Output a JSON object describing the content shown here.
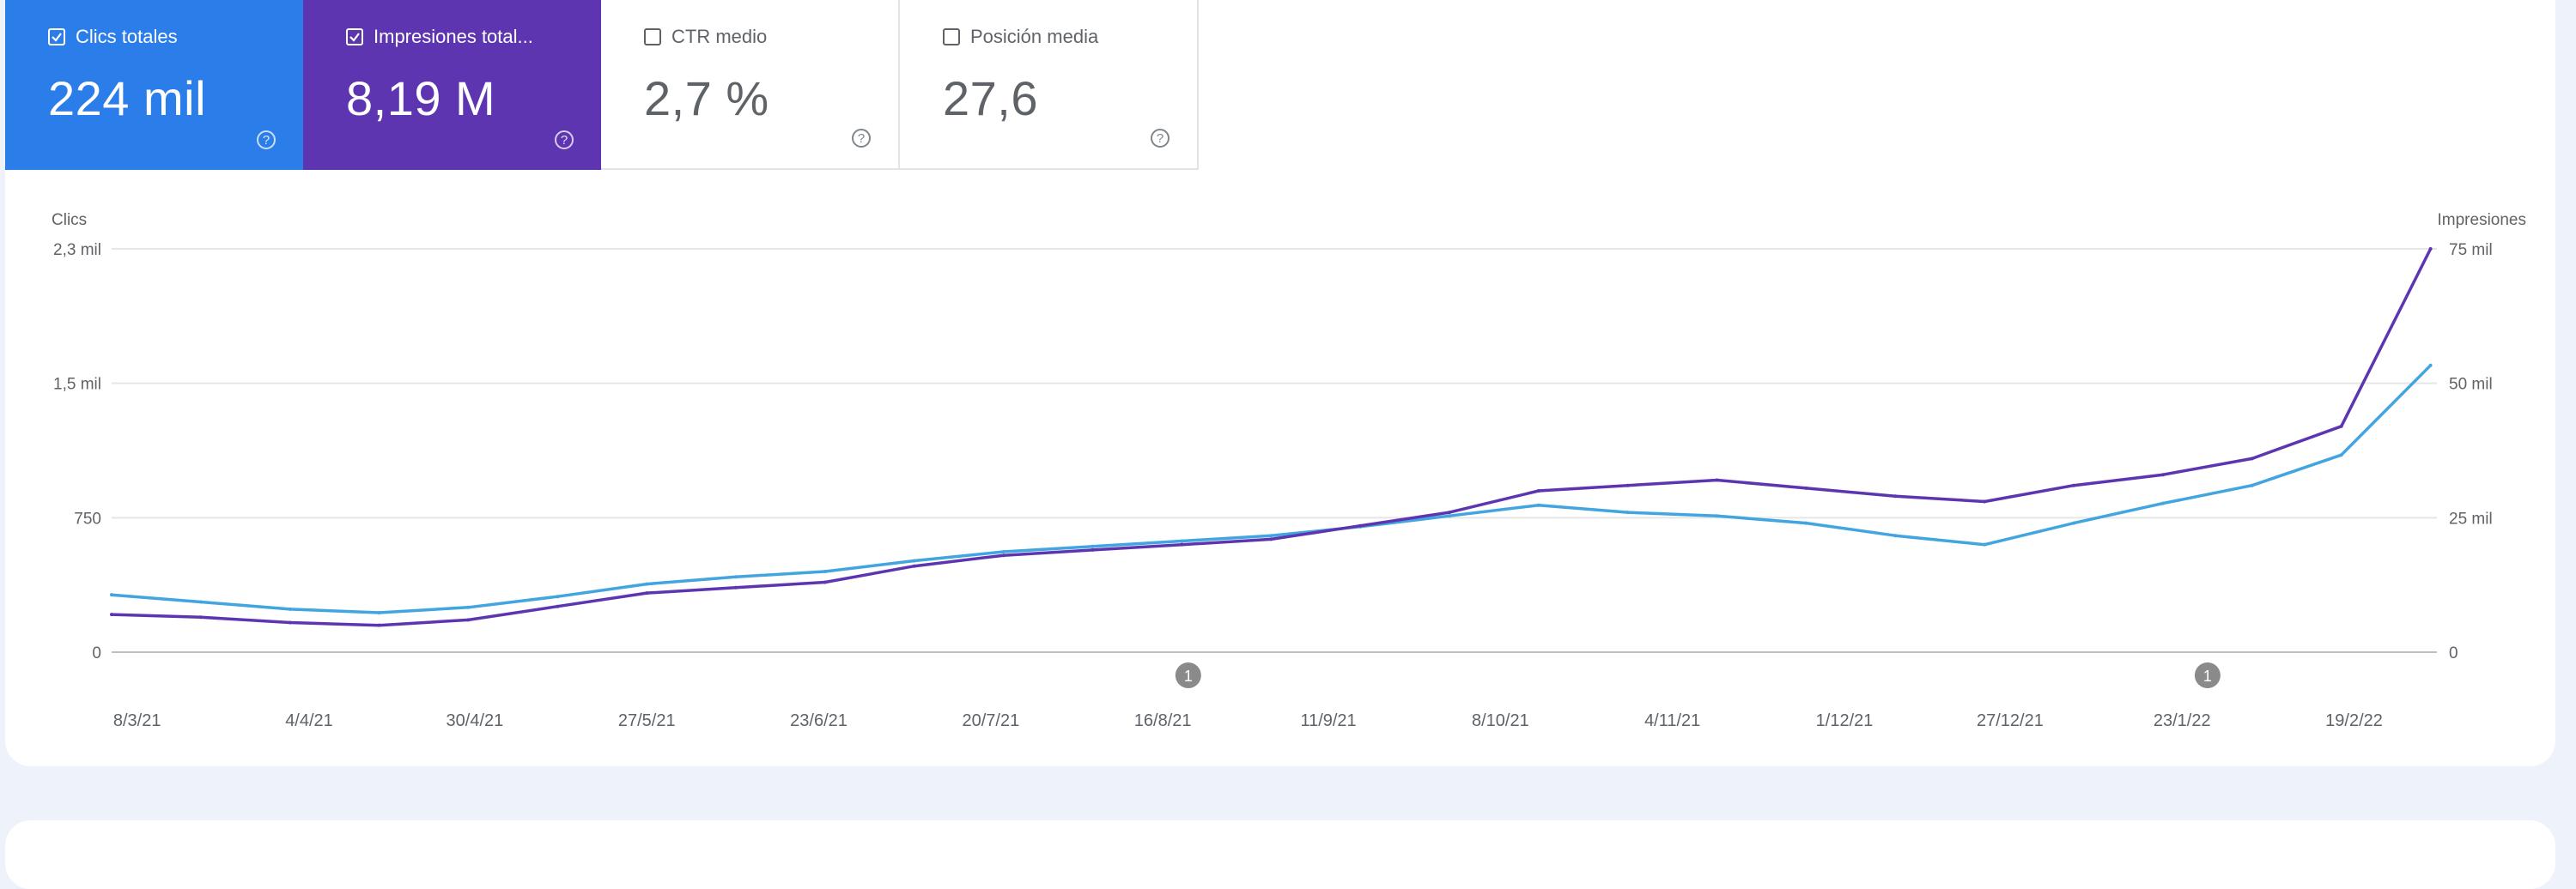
{
  "metrics": [
    {
      "label": "Clics totales",
      "value": "224 mil",
      "checked": true,
      "color": "#2b7de9"
    },
    {
      "label": "Impresiones total...",
      "value": "8,19 M",
      "checked": true,
      "color": "#5e35b1"
    },
    {
      "label": "CTR medio",
      "value": "2,7 %",
      "checked": false,
      "color": "#ffffff"
    },
    {
      "label": "Posición media",
      "value": "27,6",
      "checked": false,
      "color": "#ffffff"
    }
  ],
  "help_glyph": "?",
  "chart_data": {
    "type": "line",
    "x_ticks": [
      "8/3/21",
      "4/4/21",
      "30/4/21",
      "27/5/21",
      "23/6/21",
      "20/7/21",
      "16/8/21",
      "11/9/21",
      "8/10/21",
      "4/11/21",
      "1/12/21",
      "27/12/21",
      "23/1/22",
      "19/2/22"
    ],
    "x_range": [
      "4/3/21",
      "4/3/22"
    ],
    "y_left": {
      "label": "Clics",
      "ticks": [
        "0",
        "750",
        "1,5 mil",
        "2,3 mil"
      ],
      "values": [
        0,
        750,
        1500,
        2250
      ],
      "range": [
        0,
        2250
      ]
    },
    "y_right": {
      "label": "Impresiones",
      "ticks": [
        "0",
        "25 mil",
        "50 mil",
        "75 mil"
      ],
      "values": [
        0,
        25000,
        50000,
        75000
      ],
      "range": [
        0,
        75000
      ]
    },
    "grid": true,
    "legend": "none",
    "annotations": [
      {
        "text": "1",
        "date": "20/8/21"
      },
      {
        "text": "1",
        "date": "27/1/22"
      }
    ],
    "series": [
      {
        "name": "Clics totales",
        "axis": "left",
        "color": "#42a5e0",
        "dates": [
          "4/3/21",
          "18/3/21",
          "1/4/21",
          "15/4/21",
          "29/4/21",
          "13/5/21",
          "27/5/21",
          "10/6/21",
          "24/6/21",
          "8/7/21",
          "22/7/21",
          "5/8/21",
          "19/8/21",
          "2/9/21",
          "16/9/21",
          "30/9/21",
          "14/10/21",
          "28/10/21",
          "11/11/21",
          "25/11/21",
          "9/12/21",
          "23/12/21",
          "6/1/22",
          "20/1/22",
          "3/2/22",
          "17/2/22",
          "3/3/22"
        ],
        "values": [
          320,
          280,
          240,
          220,
          250,
          310,
          380,
          420,
          450,
          510,
          560,
          590,
          620,
          650,
          700,
          760,
          820,
          780,
          760,
          720,
          650,
          600,
          720,
          830,
          930,
          1100,
          1600
        ]
      },
      {
        "name": "Impresiones totales",
        "axis": "right",
        "color": "#5e35b1",
        "dates": [
          "4/3/21",
          "18/3/21",
          "1/4/21",
          "15/4/21",
          "29/4/21",
          "13/5/21",
          "27/5/21",
          "10/6/21",
          "24/6/21",
          "8/7/21",
          "22/7/21",
          "5/8/21",
          "19/8/21",
          "2/9/21",
          "16/9/21",
          "30/9/21",
          "14/10/21",
          "28/10/21",
          "11/11/21",
          "25/11/21",
          "9/12/21",
          "23/12/21",
          "6/1/22",
          "20/1/22",
          "3/2/22",
          "17/2/22",
          "3/3/22"
        ],
        "values": [
          7000,
          6500,
          5500,
          5000,
          6000,
          8500,
          11000,
          12000,
          13000,
          16000,
          18000,
          19000,
          20000,
          21000,
          23500,
          26000,
          30000,
          31000,
          32000,
          30500,
          29000,
          28000,
          31000,
          33000,
          36000,
          42000,
          75000
        ]
      }
    ]
  }
}
